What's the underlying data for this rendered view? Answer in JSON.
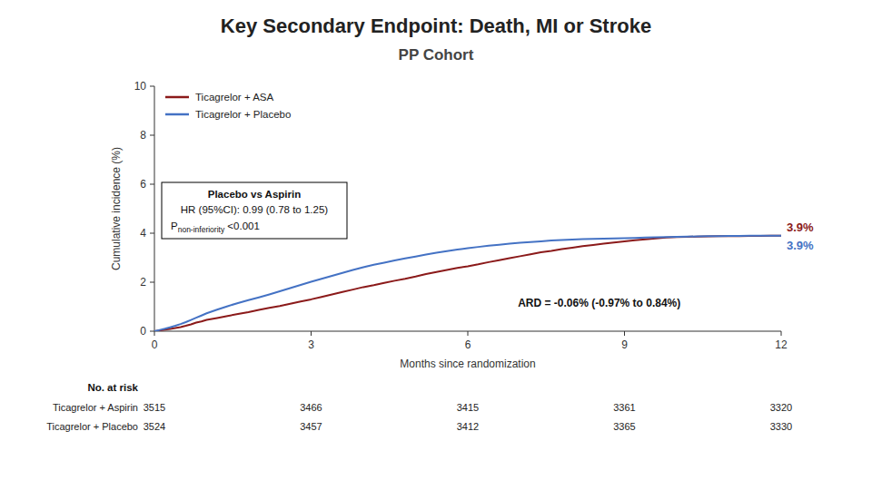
{
  "chart_data": {
    "type": "line",
    "title": "Key Secondary Endpoint: Death, MI or Stroke",
    "subtitle": "PP Cohort",
    "x_label": "Months since randomization",
    "y_label": "Cumulative incidence (%)",
    "xlim": [
      0,
      12
    ],
    "ylim": [
      0,
      10
    ],
    "xticks": [
      0,
      3,
      6,
      9,
      12
    ],
    "yticks": [
      0,
      2,
      4,
      6,
      8,
      10
    ],
    "grid": false,
    "legend": "upper left",
    "series": [
      {
        "name": "Ticagrelor + ASA",
        "color": "#8B1A1A",
        "end_label": "3.9%",
        "x": [
          0.0,
          0.1,
          0.2,
          0.3,
          0.4,
          0.5,
          0.6,
          0.7,
          0.8,
          0.9,
          1.0,
          1.2,
          1.4,
          1.6,
          1.8,
          2.0,
          2.2,
          2.4,
          2.6,
          2.8,
          3.0,
          3.2,
          3.4,
          3.6,
          3.8,
          4.0,
          4.2,
          4.4,
          4.6,
          4.8,
          5.0,
          5.2,
          5.4,
          5.6,
          5.8,
          6.0,
          6.2,
          6.4,
          6.6,
          6.8,
          7.0,
          7.2,
          7.4,
          7.6,
          7.8,
          8.0,
          8.2,
          8.4,
          8.6,
          8.8,
          9.0,
          9.2,
          9.4,
          9.6,
          9.8,
          10.0,
          10.2,
          10.4,
          10.6,
          10.8,
          11.0,
          11.2,
          11.4,
          11.6,
          11.8,
          12.0
        ],
        "values": [
          0.0,
          0.03,
          0.06,
          0.09,
          0.13,
          0.17,
          0.22,
          0.28,
          0.35,
          0.4,
          0.46,
          0.54,
          0.62,
          0.7,
          0.78,
          0.87,
          0.95,
          1.03,
          1.12,
          1.21,
          1.3,
          1.4,
          1.5,
          1.6,
          1.7,
          1.8,
          1.88,
          1.97,
          2.06,
          2.14,
          2.23,
          2.33,
          2.42,
          2.5,
          2.58,
          2.65,
          2.73,
          2.82,
          2.9,
          2.98,
          3.06,
          3.14,
          3.22,
          3.28,
          3.35,
          3.41,
          3.47,
          3.52,
          3.57,
          3.62,
          3.67,
          3.71,
          3.75,
          3.79,
          3.82,
          3.84,
          3.85,
          3.86,
          3.87,
          3.88,
          3.88,
          3.88,
          3.89,
          3.89,
          3.9,
          3.9
        ]
      },
      {
        "name": "Ticagrelor + Placebo",
        "color": "#4472C4",
        "end_label": "3.9%",
        "x": [
          0.0,
          0.1,
          0.2,
          0.3,
          0.4,
          0.5,
          0.6,
          0.7,
          0.8,
          0.9,
          1.0,
          1.2,
          1.4,
          1.6,
          1.8,
          2.0,
          2.2,
          2.4,
          2.6,
          2.8,
          3.0,
          3.2,
          3.4,
          3.6,
          3.8,
          4.0,
          4.2,
          4.4,
          4.6,
          4.8,
          5.0,
          5.2,
          5.4,
          5.6,
          5.8,
          6.0,
          6.2,
          6.4,
          6.6,
          6.8,
          7.0,
          7.2,
          7.4,
          7.6,
          7.8,
          8.0,
          8.2,
          8.4,
          8.6,
          8.8,
          9.0,
          9.2,
          9.4,
          9.6,
          9.8,
          10.0,
          10.2,
          10.4,
          10.6,
          10.8,
          11.0,
          11.2,
          11.4,
          11.6,
          11.8,
          12.0
        ],
        "values": [
          0.0,
          0.05,
          0.1,
          0.16,
          0.22,
          0.29,
          0.37,
          0.46,
          0.55,
          0.64,
          0.73,
          0.88,
          1.02,
          1.15,
          1.27,
          1.38,
          1.5,
          1.63,
          1.76,
          1.89,
          2.02,
          2.14,
          2.26,
          2.38,
          2.5,
          2.61,
          2.71,
          2.8,
          2.89,
          2.97,
          3.05,
          3.13,
          3.2,
          3.27,
          3.33,
          3.39,
          3.44,
          3.49,
          3.53,
          3.57,
          3.61,
          3.64,
          3.67,
          3.7,
          3.72,
          3.74,
          3.76,
          3.77,
          3.78,
          3.79,
          3.8,
          3.81,
          3.82,
          3.83,
          3.84,
          3.85,
          3.86,
          3.87,
          3.88,
          3.88,
          3.89,
          3.89,
          3.9,
          3.9,
          3.9,
          3.9
        ]
      }
    ],
    "annotation_box": {
      "heading": "Placebo vs Aspirin",
      "text": "HR (95%CI): 0.99 (0.78 to 1.25)",
      "p_label": "P",
      "p_subscript": "non-inferiority",
      "p_value": " <0.001"
    },
    "annotation": "ARD = -0.06% (-0.97% to 0.84%)",
    "risk_table": {
      "header": "No. at risk",
      "times": [
        0,
        3,
        6,
        9,
        12
      ],
      "rows": [
        {
          "name": "Ticagrelor + Aspirin",
          "values": [
            3515,
            3466,
            3415,
            3361,
            3320
          ]
        },
        {
          "name": "Ticagrelor + Placebo",
          "values": [
            3524,
            3457,
            3412,
            3365,
            3330
          ]
        }
      ]
    }
  }
}
